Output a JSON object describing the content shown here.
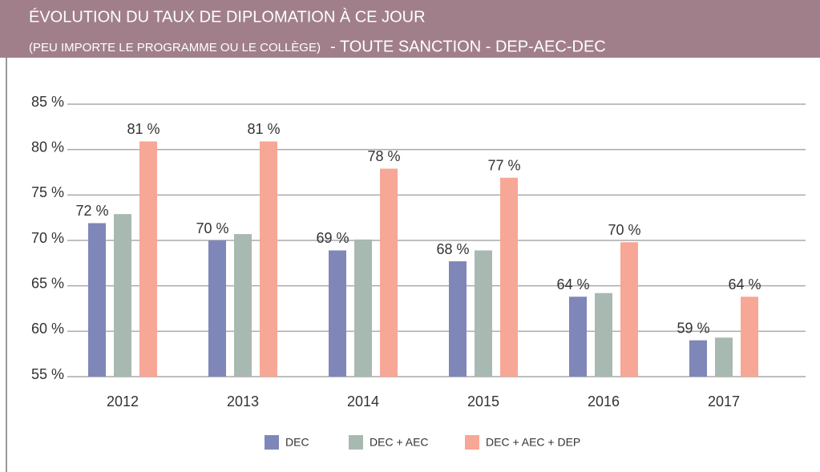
{
  "chart_data": {
    "type": "bar",
    "title": "ÉVOLUTION DU TAUX DE DIPLOMATION À CE JOUR",
    "subtitle": [
      "(PEU IMPORTE LE PROGRAMME OU LE COLLÈGE)",
      "- TOUTE SANCTION - DEP-AEC-DEC"
    ],
    "categories": [
      "2012",
      "2013",
      "2014",
      "2015",
      "2016",
      "2017"
    ],
    "series": [
      {
        "name": "DEC",
        "color": "#7f87b8",
        "values": [
          71.9,
          70,
          68.9,
          67.7,
          63.8,
          59
        ],
        "value_labels": [
          "72 %",
          "70 %",
          "69 %",
          "68 %",
          "64 %",
          "59 %"
        ]
      },
      {
        "name": "DEC + AEC",
        "color": "#a8b9b1",
        "values": [
          72.9,
          70.7,
          70.1,
          68.9,
          64.2,
          59.3
        ]
      },
      {
        "name": "DEC + AEC + DEP",
        "color": "#f7a796",
        "values": [
          80.9,
          80.9,
          77.9,
          76.9,
          69.8,
          63.8
        ],
        "value_labels": [
          "81 %",
          "81 %",
          "78 %",
          "77 %",
          "70 %",
          "64 %"
        ]
      }
    ],
    "ylim": [
      55,
      85
    ],
    "yticks": [
      {
        "value": 55,
        "label": "55 %"
      },
      {
        "value": 60,
        "label": "60 %"
      },
      {
        "value": 65,
        "label": "65 %"
      },
      {
        "value": 70,
        "label": "70 %"
      },
      {
        "value": 75,
        "label": "75 %"
      },
      {
        "value": 80,
        "label": "80 %"
      },
      {
        "value": 85,
        "label": "85 %"
      }
    ],
    "grid": true,
    "legend": "bottom"
  }
}
